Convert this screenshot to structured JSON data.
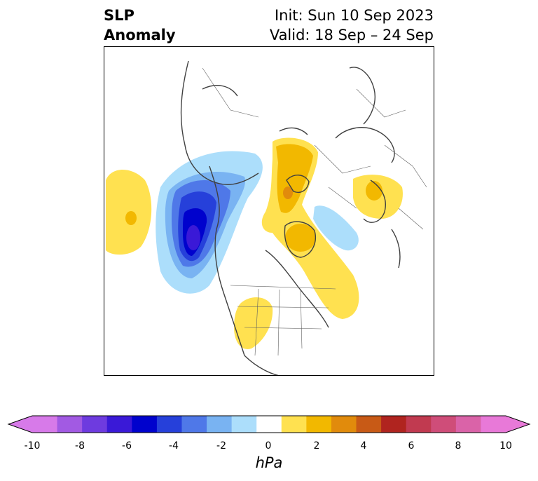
{
  "title": {
    "line1": "SLP",
    "line2": "Anomaly"
  },
  "init": "Init: Sun 10 Sep 2023",
  "valid": "Valid: 18 Sep – 24 Sep",
  "colorbar": {
    "unit": "hPa",
    "ticks": [
      "-10",
      "-8",
      "-6",
      "-4",
      "-2",
      "0",
      "2",
      "4",
      "6",
      "8",
      "10"
    ],
    "colors": [
      "#d77ae9",
      "#a25ae3",
      "#6e3bdf",
      "#3a19d7",
      "#0002cd",
      "#2640da",
      "#4f78e8",
      "#79b3f2",
      "#acdefb",
      "#ffffff",
      "#ffe150",
      "#f2b800",
      "#e18b0c",
      "#c85a16",
      "#b0241f",
      "#c13a50",
      "#cf4d79",
      "#da63a8",
      "#e879d8"
    ],
    "min_arrow_color": "#d77ae9",
    "max_arrow_color": "#e879d8"
  }
}
